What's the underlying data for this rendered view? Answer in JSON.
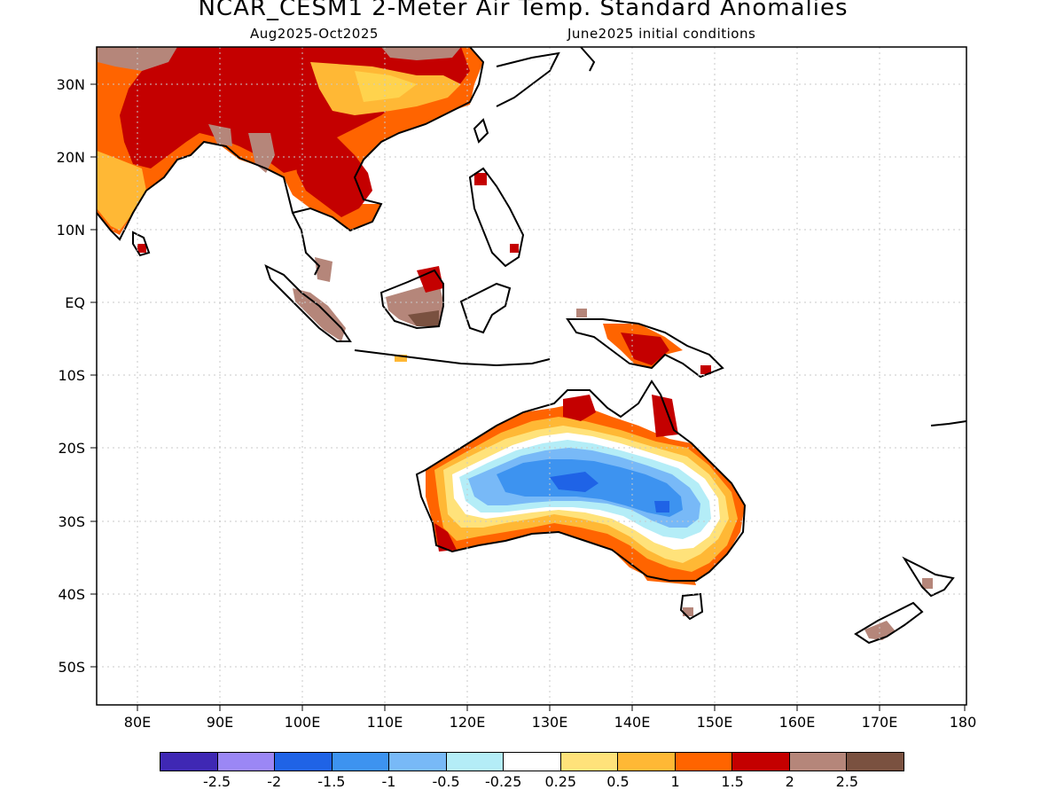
{
  "header": {
    "title": "NCAR_CESM1 2-Meter Air Temp. Standard Anomalies",
    "period": "Aug2025-Oct2025",
    "init": "June2025 initial conditions"
  },
  "map": {
    "lon_labels": [
      "80E",
      "90E",
      "100E",
      "110E",
      "120E",
      "130E",
      "140E",
      "150E",
      "160E",
      "170E",
      "180"
    ],
    "lat_labels": [
      "30N",
      "20N",
      "10N",
      "EQ",
      "10S",
      "20S",
      "30S",
      "40S",
      "50S"
    ],
    "regions": [
      {
        "name": "Asia mainland",
        "anomaly": "1.5 to 2 (red/orange)"
      },
      {
        "name": "Central Australia",
        "anomaly": "-1 to -0.5 (blue)"
      },
      {
        "name": "Northern Australia",
        "anomaly": "1.5 to 2"
      },
      {
        "name": "Southeast Australia",
        "anomaly": "1 to 1.5"
      },
      {
        "name": "Borneo / Sumatra",
        "anomaly": "> 2 (brown)"
      },
      {
        "name": "New Guinea",
        "anomaly": "1.5 to 2"
      },
      {
        "name": "New Zealand",
        "anomaly": "> 2"
      }
    ]
  },
  "legend": {
    "colors": [
      "#3f28b4",
      "#9b87f5",
      "#1f63e6",
      "#3d93f0",
      "#78b9f7",
      "#b4edf7",
      "#ffffff",
      "#ffe27a",
      "#ffb835",
      "#ff6400",
      "#c40000",
      "#b5867a",
      "#7a5140"
    ],
    "labels": [
      "-2.5",
      "-2",
      "-1.5",
      "-1",
      "-0.5",
      "-0.25",
      "0.25",
      "0.5",
      "1",
      "1.5",
      "2",
      "2.5"
    ]
  }
}
